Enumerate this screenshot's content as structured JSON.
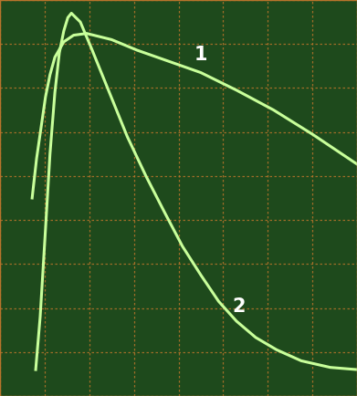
{
  "chart_data": {
    "type": "line",
    "series": [
      {
        "name": "1",
        "color": "#c8ff9a",
        "x": [
          0.72,
          0.82,
          0.92,
          1.02,
          1.12,
          1.23,
          1.43,
          1.65,
          1.94,
          2.5,
          3.07,
          3.8,
          4.5,
          5.3,
          6.13,
          7.0,
          8.0
        ],
        "values": [
          4.5,
          5.4,
          6.1,
          6.8,
          7.3,
          7.7,
          8.05,
          8.2,
          8.24,
          8.1,
          7.86,
          7.6,
          7.35,
          6.95,
          6.5,
          5.95,
          5.27
        ]
      },
      {
        "name": "2",
        "color": "#c8ff9a",
        "x": [
          0.8,
          0.9,
          1.02,
          1.12,
          1.23,
          1.33,
          1.43,
          1.52,
          1.6,
          1.8,
          2.05,
          2.45,
          2.85,
          3.27,
          3.7,
          4.09,
          4.5,
          4.9,
          5.3,
          5.73,
          6.2,
          6.75,
          7.4,
          8.0
        ],
        "values": [
          0.6,
          1.8,
          3.8,
          5.5,
          6.9,
          7.8,
          8.3,
          8.6,
          8.7,
          8.5,
          7.9,
          6.9,
          5.9,
          5.0,
          4.15,
          3.4,
          2.75,
          2.15,
          1.7,
          1.33,
          1.05,
          0.8,
          0.65,
          0.6
        ]
      }
    ],
    "xlim": [
      0,
      8
    ],
    "ylim": [
      0,
      9
    ],
    "xticks": [
      0,
      1,
      2,
      3,
      4,
      5,
      6,
      7,
      8
    ],
    "yticks": [
      0,
      1,
      2,
      3,
      4,
      5,
      6,
      7,
      8,
      9
    ],
    "grid": true,
    "tick_labels": false
  }
}
